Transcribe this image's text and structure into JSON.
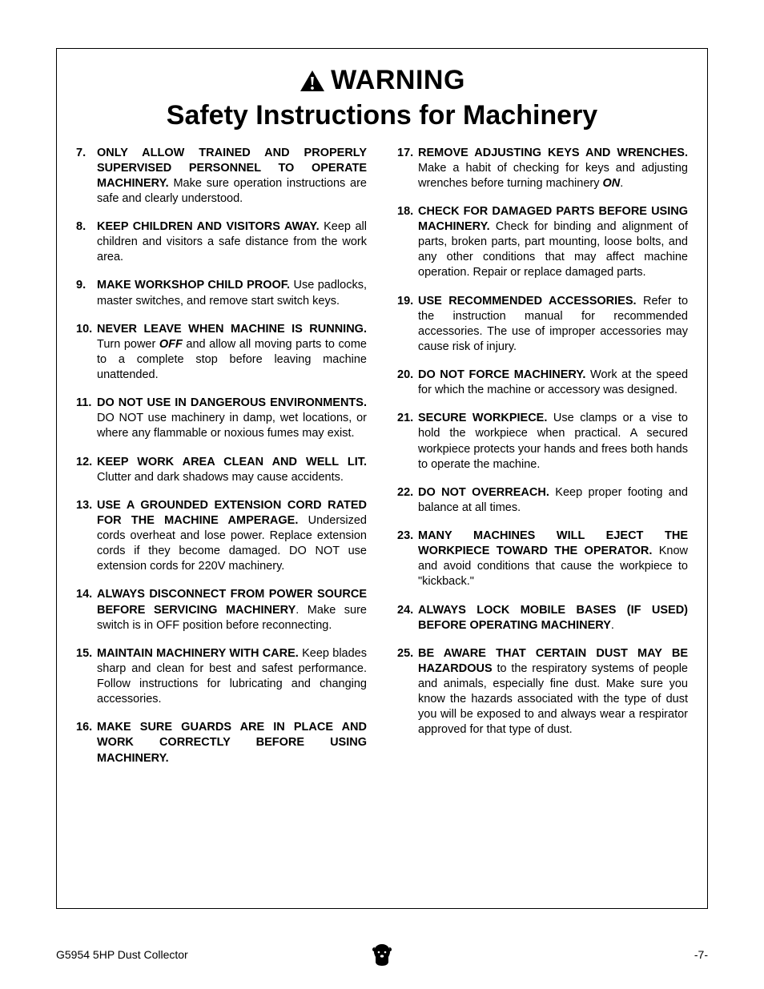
{
  "header": {
    "warning_text": "WARNING",
    "subtitle": "Safety Instructions for Machinery"
  },
  "left_column": [
    {
      "num": "7.",
      "bold": "ONLY ALLOW TRAINED AND PROPERLY SUPERVISED PERSONNEL TO OPERATE MACHINERY.",
      "rest": " Make sure operation instructions are safe and clearly understood."
    },
    {
      "num": "8.",
      "bold": "KEEP CHILDREN AND VISITORS AWAY.",
      "rest": " Keep all children and visitors a safe distance from the work area."
    },
    {
      "num": "9.",
      "bold": "MAKE WORKSHOP CHILD PROOF.",
      "rest": " Use padlocks, master switches, and remove start switch keys."
    },
    {
      "num": "10.",
      "bold": "NEVER LEAVE WHEN MACHINE IS RUNNING.",
      "rest_pre": " Turn power ",
      "rest_em": "OFF",
      "rest_post": " and allow all moving parts to come to a complete stop before leaving machine unattended."
    },
    {
      "num": "11.",
      "bold": "DO NOT USE IN DANGEROUS ENVIRONMENTS.",
      "rest": " DO NOT use machinery in damp, wet locations, or where any flammable or noxious fumes may exist."
    },
    {
      "num": "12.",
      "bold": "KEEP WORK AREA CLEAN AND WELL LIT.",
      "rest": " Clutter and dark shadows may cause accidents."
    },
    {
      "num": "13.",
      "bold": "USE A GROUNDED EXTENSION CORD RATED FOR THE MACHINE AMPERAGE.",
      "rest": " Undersized cords overheat and lose power. Replace extension cords if they become damaged. DO NOT use extension cords for 220V machinery."
    },
    {
      "num": "14.",
      "bold": "ALWAYS DISCONNECT FROM POWER SOURCE BEFORE SERVICING MACHINERY",
      "rest": ". Make sure switch is in OFF position before reconnecting."
    },
    {
      "num": "15.",
      "bold": "MAINTAIN MACHINERY WITH CARE.",
      "rest": " Keep blades sharp and clean for best and safest performance. Follow instructions for lubricating and changing accessories."
    },
    {
      "num": "16.",
      "bold": "MAKE SURE GUARDS ARE IN PLACE AND WORK CORRECTLY BEFORE USING MACHINERY.",
      "rest": ""
    }
  ],
  "right_column": [
    {
      "num": "17.",
      "bold": "REMOVE ADJUSTING KEYS AND WRENCHES.",
      "rest_pre": " Make a habit of checking for keys and adjusting wrenches before turning machinery ",
      "rest_em": "ON",
      "rest_post": "."
    },
    {
      "num": "18.",
      "bold": "CHECK FOR DAMAGED PARTS BEFORE USING MACHINERY.",
      "rest": " Check for binding and alignment of parts, broken parts, part mounting, loose bolts, and any other conditions that may affect machine operation. Repair or replace damaged parts."
    },
    {
      "num": "19.",
      "bold": "USE RECOMMENDED ACCESSORIES.",
      "rest": " Refer to the instruction manual for recommended accessories. The use of improper accessories may cause risk of injury."
    },
    {
      "num": "20.",
      "bold": "DO NOT FORCE MACHINERY.",
      "rest": " Work at the speed for which the machine or accessory was designed."
    },
    {
      "num": "21.",
      "bold": "SECURE WORKPIECE.",
      "rest": " Use clamps or a vise to hold the workpiece when practical. A secured workpiece protects your hands and frees both hands to operate the machine."
    },
    {
      "num": "22.",
      "bold": "DO NOT OVERREACH.",
      "rest": " Keep proper footing and balance at all times."
    },
    {
      "num": "23.",
      "bold": "MANY MACHINES WILL EJECT THE WORKPIECE TOWARD THE OPERATOR.",
      "rest": " Know and avoid conditions that cause the workpiece to \"kickback.\""
    },
    {
      "num": "24.",
      "bold": "ALWAYS LOCK MOBILE BASES (IF USED) BEFORE OPERATING MACHINERY",
      "rest": "."
    },
    {
      "num": "25.",
      "bold": "BE AWARE THAT CERTAIN DUST MAY BE HAZARDOUS",
      "rest": " to the respiratory systems of people and animals, especially fine dust. Make sure you know the hazards associated with the type of dust you will be exposed to and always wear a respirator approved for that type of dust."
    }
  ],
  "footer": {
    "left": "G5954 5HP Dust Collector",
    "right": "-7-"
  }
}
